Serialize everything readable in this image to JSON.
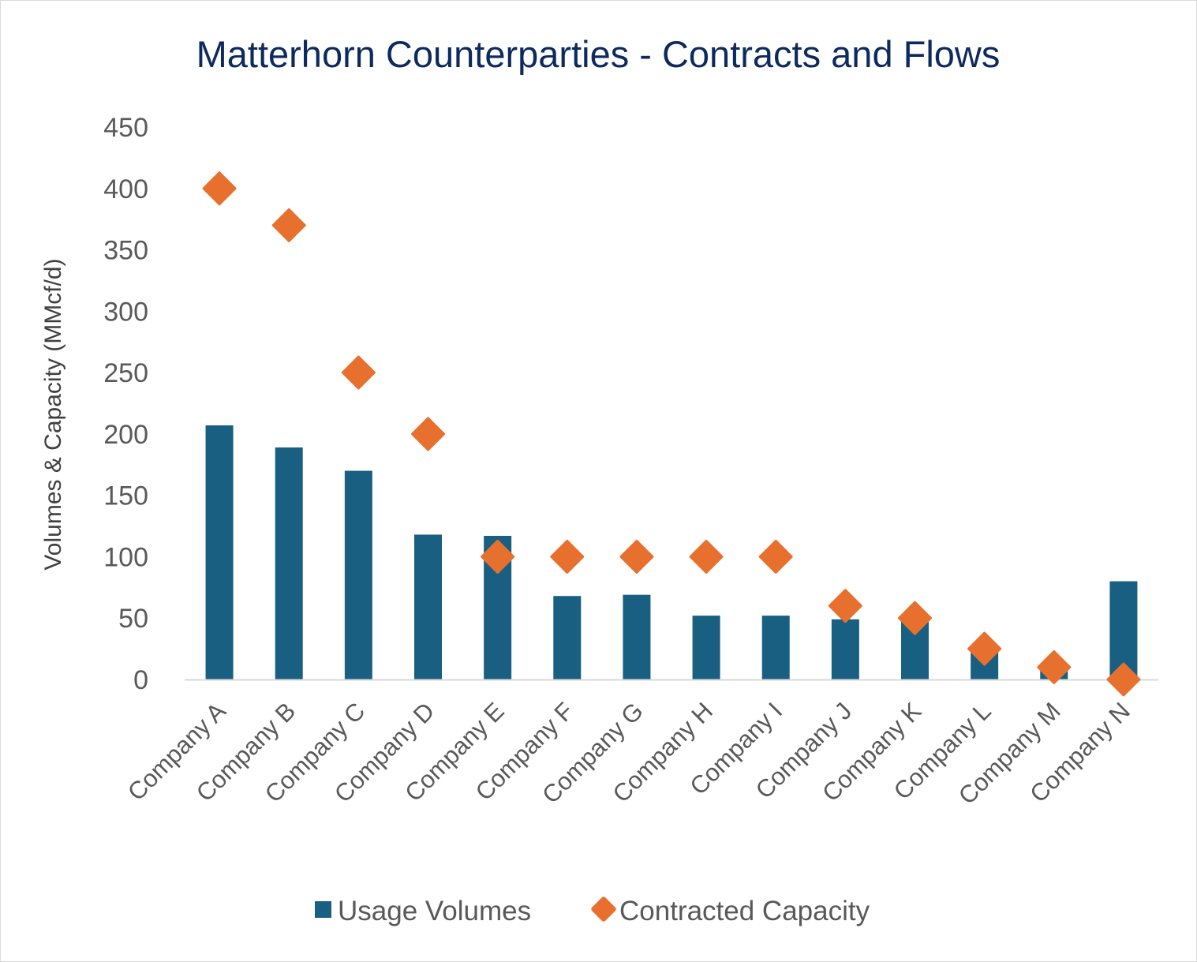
{
  "chart_data": {
    "type": "bar",
    "title": "Matterhorn Counterparties - Contracts and Flows",
    "xlabel": "",
    "ylabel": "Volumes & Capacity  (MMcf/d)",
    "ylim": [
      0,
      450
    ],
    "yticks": [
      0,
      50,
      100,
      150,
      200,
      250,
      300,
      350,
      400,
      450
    ],
    "grid": false,
    "legend_position": "bottom",
    "categories": [
      "Company A",
      "Company B",
      "Company C",
      "Company D",
      "Company E",
      "Company F",
      "Company G",
      "Company H",
      "Company I",
      "Company J",
      "Company K",
      "Company L",
      "Company M",
      "Company N"
    ],
    "series": [
      {
        "name": "Usage Volumes",
        "type": "bar",
        "color": "#185f82",
        "values": [
          207,
          189,
          170,
          118,
          117,
          68,
          69,
          52,
          52,
          49,
          49,
          24,
          7,
          80
        ]
      },
      {
        "name": "Contracted Capacity",
        "type": "scatter",
        "marker": "diamond",
        "color": "#e8702f",
        "values": [
          400,
          370,
          250,
          200,
          100,
          100,
          100,
          100,
          100,
          60,
          50,
          25,
          10,
          0
        ]
      }
    ]
  }
}
